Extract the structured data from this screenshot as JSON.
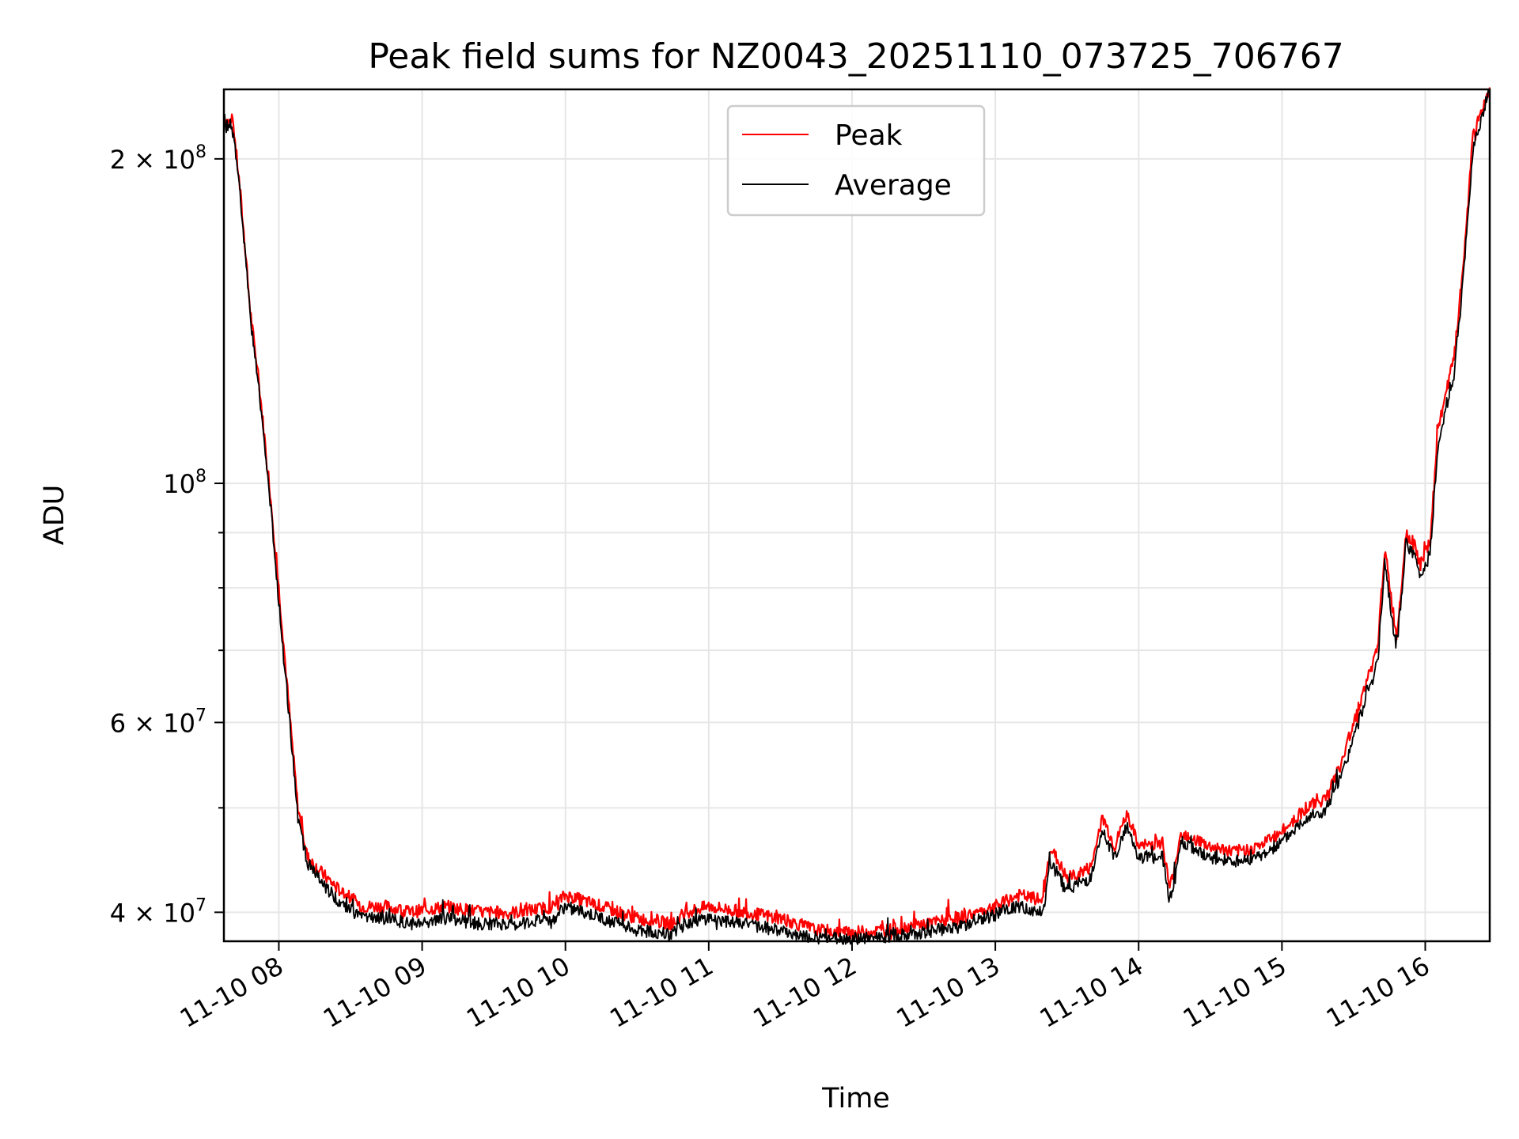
{
  "chart_data": {
    "type": "line",
    "title": "Peak field sums for NZ0043_20251110_073725_706767",
    "xlabel": "Time",
    "ylabel": "ADU",
    "yscale": "log",
    "ylim": [
      37600000,
      232000000
    ],
    "xlim": [
      "2025-11-10 07:37",
      "2025-11-10 16:27"
    ],
    "grid": true,
    "legend": {
      "position": "top-center",
      "entries": [
        "Peak",
        "Average"
      ]
    },
    "x_ticks": [
      "11-10 08",
      "11-10 09",
      "11-10 10",
      "11-10 11",
      "11-10 12",
      "11-10 13",
      "11-10 14",
      "11-10 15",
      "11-10 16"
    ],
    "y_ticks": [
      {
        "value": 40000000,
        "base": "4 × 10",
        "exp": "7"
      },
      {
        "value": 60000000,
        "base": "6 × 10",
        "exp": "7"
      },
      {
        "value": 100000000,
        "base": "10",
        "exp": "8"
      },
      {
        "value": 200000000,
        "base": "2 × 10",
        "exp": "8"
      }
    ],
    "y_minor_ticks": [
      50000000,
      70000000,
      80000000,
      90000000
    ],
    "series": [
      {
        "name": "Peak",
        "color": "#ff0000",
        "x": [
          "2025-11-10 07:37",
          "2025-11-10 07:41",
          "2025-11-10 07:44",
          "2025-11-10 07:48",
          "2025-11-10 07:52",
          "2025-11-10 07:56",
          "2025-11-10 08:00",
          "2025-11-10 08:04",
          "2025-11-10 08:08",
          "2025-11-10 08:12",
          "2025-11-10 08:18",
          "2025-11-10 08:25",
          "2025-11-10 08:35",
          "2025-11-10 08:45",
          "2025-11-10 08:55",
          "2025-11-10 09:10",
          "2025-11-10 09:25",
          "2025-11-10 09:40",
          "2025-11-10 09:55",
          "2025-11-10 10:00",
          "2025-11-10 10:15",
          "2025-11-10 10:30",
          "2025-11-10 10:45",
          "2025-11-10 10:50",
          "2025-11-10 11:00",
          "2025-11-10 11:15",
          "2025-11-10 11:30",
          "2025-11-10 11:45",
          "2025-11-10 12:00",
          "2025-11-10 12:15",
          "2025-11-10 12:30",
          "2025-11-10 12:45",
          "2025-11-10 13:00",
          "2025-11-10 13:10",
          "2025-11-10 13:20",
          "2025-11-10 13:23",
          "2025-11-10 13:30",
          "2025-11-10 13:40",
          "2025-11-10 13:45",
          "2025-11-10 13:50",
          "2025-11-10 13:55",
          "2025-11-10 14:00",
          "2025-11-10 14:10",
          "2025-11-10 14:13",
          "2025-11-10 14:18",
          "2025-11-10 14:30",
          "2025-11-10 14:40",
          "2025-11-10 14:50",
          "2025-11-10 15:00",
          "2025-11-10 15:10",
          "2025-11-10 15:18",
          "2025-11-10 15:25",
          "2025-11-10 15:30",
          "2025-11-10 15:35",
          "2025-11-10 15:40",
          "2025-11-10 15:43",
          "2025-11-10 15:48",
          "2025-11-10 15:52",
          "2025-11-10 15:55",
          "2025-11-10 15:58",
          "2025-11-10 16:02",
          "2025-11-10 16:05",
          "2025-11-10 16:08",
          "2025-11-10 16:12",
          "2025-11-10 16:16",
          "2025-11-10 16:20",
          "2025-11-10 16:27"
        ],
        "values": [
          218000000,
          215000000,
          185000000,
          145000000,
          122000000,
          100000000,
          80000000,
          63000000,
          50000000,
          45000000,
          43500000,
          42000000,
          40500000,
          40500000,
          40000000,
          40500000,
          40000000,
          40000000,
          40500000,
          41500000,
          40500000,
          39500000,
          39000000,
          40000000,
          40500000,
          40000000,
          39500000,
          38500000,
          38300000,
          38500000,
          39000000,
          39500000,
          40500000,
          41500000,
          41000000,
          46000000,
          43000000,
          44000000,
          49000000,
          46000000,
          49500000,
          46000000,
          46500000,
          42000000,
          47500000,
          46000000,
          45500000,
          46000000,
          47500000,
          50000000,
          51000000,
          55000000,
          60000000,
          65000000,
          70000000,
          87000000,
          72000000,
          90000000,
          88000000,
          84000000,
          88000000,
          110000000,
          120000000,
          130000000,
          160000000,
          210000000,
          233000000
        ]
      },
      {
        "name": "Average",
        "color": "#000000",
        "x": [
          "2025-11-10 07:37",
          "2025-11-10 07:41",
          "2025-11-10 07:44",
          "2025-11-10 07:48",
          "2025-11-10 07:52",
          "2025-11-10 07:56",
          "2025-11-10 08:00",
          "2025-11-10 08:04",
          "2025-11-10 08:08",
          "2025-11-10 08:12",
          "2025-11-10 08:18",
          "2025-11-10 08:25",
          "2025-11-10 08:35",
          "2025-11-10 08:45",
          "2025-11-10 08:55",
          "2025-11-10 09:10",
          "2025-11-10 09:25",
          "2025-11-10 09:40",
          "2025-11-10 09:55",
          "2025-11-10 10:00",
          "2025-11-10 10:15",
          "2025-11-10 10:30",
          "2025-11-10 10:45",
          "2025-11-10 10:50",
          "2025-11-10 11:00",
          "2025-11-10 11:15",
          "2025-11-10 11:30",
          "2025-11-10 11:45",
          "2025-11-10 12:00",
          "2025-11-10 12:15",
          "2025-11-10 12:30",
          "2025-11-10 12:45",
          "2025-11-10 13:00",
          "2025-11-10 13:10",
          "2025-11-10 13:20",
          "2025-11-10 13:23",
          "2025-11-10 13:30",
          "2025-11-10 13:40",
          "2025-11-10 13:45",
          "2025-11-10 13:50",
          "2025-11-10 13:55",
          "2025-11-10 14:00",
          "2025-11-10 14:10",
          "2025-11-10 14:13",
          "2025-11-10 14:18",
          "2025-11-10 14:30",
          "2025-11-10 14:40",
          "2025-11-10 14:50",
          "2025-11-10 15:00",
          "2025-11-10 15:10",
          "2025-11-10 15:18",
          "2025-11-10 15:25",
          "2025-11-10 15:30",
          "2025-11-10 15:35",
          "2025-11-10 15:40",
          "2025-11-10 15:43",
          "2025-11-10 15:48",
          "2025-11-10 15:52",
          "2025-11-10 15:55",
          "2025-11-10 15:58",
          "2025-11-10 16:02",
          "2025-11-10 16:05",
          "2025-11-10 16:08",
          "2025-11-10 16:12",
          "2025-11-10 16:16",
          "2025-11-10 16:20",
          "2025-11-10 16:27"
        ],
        "values": [
          216000000,
          213000000,
          183000000,
          143000000,
          120000000,
          98000000,
          78000000,
          62000000,
          49000000,
          44500000,
          42500000,
          41000000,
          39500000,
          39500000,
          39000000,
          39500000,
          39000000,
          39000000,
          39500000,
          40500000,
          39500000,
          38500000,
          38200000,
          39000000,
          39500000,
          39000000,
          38500000,
          37900000,
          37800000,
          38000000,
          38300000,
          38800000,
          39800000,
          40500000,
          40000000,
          44500000,
          42000000,
          43000000,
          47500000,
          45000000,
          48000000,
          45000000,
          45000000,
          41000000,
          46500000,
          45000000,
          44500000,
          45000000,
          46500000,
          49000000,
          49500000,
          53500000,
          58000000,
          63000000,
          68000000,
          84000000,
          70000000,
          88000000,
          86000000,
          82000000,
          86000000,
          106000000,
          116000000,
          126000000,
          155000000,
          205000000,
          232000000
        ]
      }
    ]
  }
}
